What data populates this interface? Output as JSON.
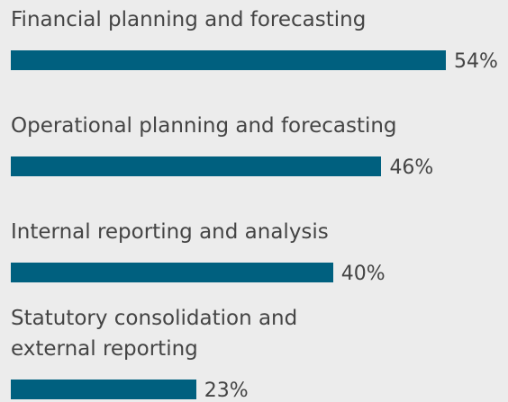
{
  "chart_data": {
    "type": "bar",
    "orientation": "horizontal",
    "categories": [
      "Financial planning and forecasting",
      "Operational planning and forecasting",
      "Internal reporting and analysis",
      "Statutory consolidation and external reporting"
    ],
    "values": [
      54,
      46,
      40,
      23
    ],
    "value_labels": [
      "54%",
      "46%",
      "40%",
      "23%"
    ],
    "color": "#00607f"
  }
}
